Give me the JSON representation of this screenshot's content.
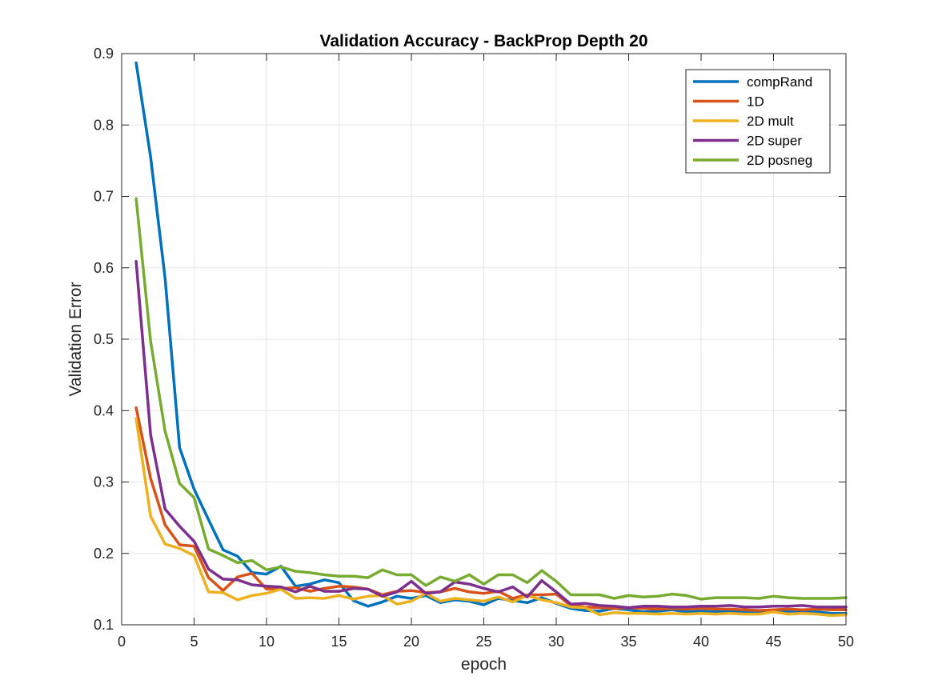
{
  "chart_data": {
    "type": "line",
    "title": "Validation Accuracy - BackProp Depth 20",
    "xlabel": "epoch",
    "ylabel": "Validation Error",
    "xlim": [
      0,
      50
    ],
    "ylim": [
      0.1,
      0.9
    ],
    "xticks": [
      0,
      5,
      10,
      15,
      20,
      25,
      30,
      35,
      40,
      45,
      50
    ],
    "yticks": [
      0.1,
      0.2,
      0.3,
      0.4,
      0.5,
      0.6,
      0.7,
      0.8,
      0.9
    ],
    "grid": true,
    "legend_position": "top-right",
    "x": [
      1,
      2,
      3,
      4,
      5,
      6,
      7,
      8,
      9,
      10,
      11,
      12,
      13,
      14,
      15,
      16,
      17,
      18,
      19,
      20,
      21,
      22,
      23,
      24,
      25,
      26,
      27,
      28,
      29,
      30,
      31,
      32,
      33,
      34,
      35,
      36,
      37,
      38,
      39,
      40,
      41,
      42,
      43,
      44,
      45,
      46,
      47,
      48,
      49,
      50
    ],
    "series": [
      {
        "name": "compRand",
        "color": "#0072BD",
        "values": [
          0.887,
          0.755,
          0.585,
          0.348,
          0.29,
          0.247,
          0.205,
          0.196,
          0.173,
          0.171,
          0.182,
          0.154,
          0.157,
          0.163,
          0.159,
          0.134,
          0.126,
          0.132,
          0.14,
          0.137,
          0.141,
          0.131,
          0.135,
          0.133,
          0.128,
          0.137,
          0.134,
          0.131,
          0.138,
          0.13,
          0.123,
          0.12,
          0.119,
          0.123,
          0.121,
          0.118,
          0.119,
          0.121,
          0.118,
          0.119,
          0.118,
          0.119,
          0.117,
          0.118,
          0.12,
          0.119,
          0.119,
          0.118,
          0.116,
          0.116
        ]
      },
      {
        "name": "1D",
        "color": "#D95319",
        "values": [
          0.404,
          0.305,
          0.24,
          0.212,
          0.21,
          0.166,
          0.148,
          0.167,
          0.172,
          0.15,
          0.151,
          0.152,
          0.147,
          0.151,
          0.154,
          0.153,
          0.15,
          0.142,
          0.147,
          0.148,
          0.145,
          0.146,
          0.151,
          0.146,
          0.144,
          0.147,
          0.137,
          0.142,
          0.142,
          0.143,
          0.127,
          0.125,
          0.124,
          0.123,
          0.124,
          0.123,
          0.122,
          0.123,
          0.122,
          0.123,
          0.122,
          0.122,
          0.121,
          0.12,
          0.121,
          0.122,
          0.121,
          0.122,
          0.121,
          0.121
        ]
      },
      {
        "name": "2D mult",
        "color": "#EDB120",
        "values": [
          0.389,
          0.252,
          0.213,
          0.207,
          0.197,
          0.146,
          0.145,
          0.135,
          0.141,
          0.144,
          0.15,
          0.137,
          0.138,
          0.137,
          0.141,
          0.136,
          0.14,
          0.141,
          0.129,
          0.133,
          0.144,
          0.133,
          0.137,
          0.135,
          0.133,
          0.139,
          0.132,
          0.141,
          0.135,
          0.131,
          0.125,
          0.124,
          0.114,
          0.117,
          0.116,
          0.116,
          0.115,
          0.116,
          0.115,
          0.116,
          0.115,
          0.116,
          0.115,
          0.115,
          0.118,
          0.115,
          0.116,
          0.115,
          0.113,
          0.114
        ]
      },
      {
        "name": "2D super",
        "color": "#7E2F8E",
        "values": [
          0.609,
          0.366,
          0.262,
          0.238,
          0.217,
          0.178,
          0.164,
          0.163,
          0.156,
          0.154,
          0.153,
          0.146,
          0.154,
          0.147,
          0.147,
          0.151,
          0.15,
          0.14,
          0.146,
          0.161,
          0.144,
          0.146,
          0.16,
          0.157,
          0.151,
          0.146,
          0.153,
          0.139,
          0.162,
          0.146,
          0.129,
          0.13,
          0.127,
          0.126,
          0.124,
          0.126,
          0.126,
          0.125,
          0.125,
          0.126,
          0.126,
          0.127,
          0.125,
          0.125,
          0.126,
          0.126,
          0.127,
          0.125,
          0.125,
          0.125
        ]
      },
      {
        "name": "2D posneg",
        "color": "#77AC30",
        "values": [
          0.697,
          0.497,
          0.371,
          0.298,
          0.278,
          0.206,
          0.197,
          0.187,
          0.19,
          0.177,
          0.181,
          0.175,
          0.173,
          0.17,
          0.168,
          0.168,
          0.166,
          0.177,
          0.17,
          0.17,
          0.155,
          0.167,
          0.161,
          0.17,
          0.157,
          0.17,
          0.17,
          0.159,
          0.176,
          0.161,
          0.142,
          0.142,
          0.142,
          0.137,
          0.141,
          0.139,
          0.14,
          0.143,
          0.141,
          0.136,
          0.138,
          0.138,
          0.138,
          0.137,
          0.14,
          0.138,
          0.137,
          0.137,
          0.137,
          0.138
        ]
      }
    ]
  }
}
